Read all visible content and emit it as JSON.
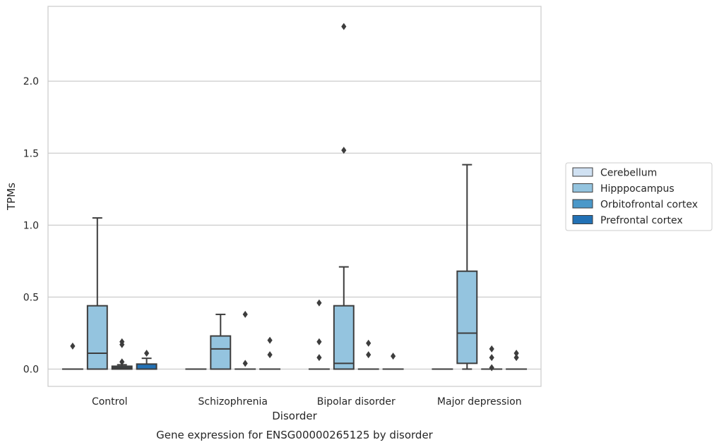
{
  "chart_data": {
    "type": "box",
    "caption": "Gene expression for ENSG00000265125 by disorder",
    "xlabel": "Disorder",
    "ylabel": "TPMs",
    "ylim": [
      -0.12,
      2.52
    ],
    "yticks": [
      0.0,
      0.5,
      1.0,
      1.5,
      2.0
    ],
    "ytick_labels": [
      "0.0",
      "0.5",
      "1.0",
      "1.5",
      "2.0"
    ],
    "grid": true,
    "legend_position": "right",
    "categories": [
      "Control",
      "Schizophrenia",
      "Bipolar disorder",
      "Major depression"
    ],
    "series": [
      {
        "name": "Cerebellum",
        "color": "#d0e1f2",
        "boxes": [
          {
            "q1": 0,
            "median": 0,
            "q3": 0,
            "whisker_low": 0,
            "whisker_high": 0,
            "outliers": [
              0.16
            ]
          },
          {
            "q1": 0,
            "median": 0,
            "q3": 0,
            "whisker_low": 0,
            "whisker_high": 0,
            "outliers": []
          },
          {
            "q1": 0,
            "median": 0,
            "q3": 0,
            "whisker_low": 0,
            "whisker_high": 0,
            "outliers": [
              0.46,
              0.19,
              0.08
            ]
          },
          {
            "q1": 0,
            "median": 0,
            "q3": 0,
            "whisker_low": 0,
            "whisker_high": 0,
            "outliers": []
          }
        ]
      },
      {
        "name": "Hipppocampus",
        "color": "#94c4df",
        "boxes": [
          {
            "q1": 0,
            "median": 0.11,
            "q3": 0.44,
            "whisker_low": 0,
            "whisker_high": 1.05,
            "outliers": []
          },
          {
            "q1": 0,
            "median": 0.14,
            "q3": 0.23,
            "whisker_low": 0,
            "whisker_high": 0.38,
            "outliers": []
          },
          {
            "q1": 0,
            "median": 0.04,
            "q3": 0.44,
            "whisker_low": 0,
            "whisker_high": 0.71,
            "outliers": [
              2.38,
              1.52
            ]
          },
          {
            "q1": 0.04,
            "median": 0.25,
            "q3": 0.68,
            "whisker_low": 0,
            "whisker_high": 1.42,
            "outliers": []
          }
        ]
      },
      {
        "name": "Orbitofrontal cortex",
        "color": "#4a98c9",
        "boxes": [
          {
            "q1": 0,
            "median": 0.01,
            "q3": 0.02,
            "whisker_low": 0,
            "whisker_high": 0.03,
            "outliers": [
              0.19,
              0.17,
              0.05
            ]
          },
          {
            "q1": 0,
            "median": 0,
            "q3": 0,
            "whisker_low": 0,
            "whisker_high": 0,
            "outliers": [
              0.38,
              0.04
            ]
          },
          {
            "q1": 0,
            "median": 0,
            "q3": 0,
            "whisker_low": 0,
            "whisker_high": 0,
            "outliers": [
              0.18,
              0.1
            ]
          },
          {
            "q1": 0,
            "median": 0,
            "q3": 0,
            "whisker_low": 0,
            "whisker_high": 0,
            "outliers": [
              0.14,
              0.08,
              0.01
            ]
          }
        ]
      },
      {
        "name": "Prefrontal cortex",
        "color": "#2271b5",
        "boxes": [
          {
            "q1": 0,
            "median": 0,
            "q3": 0.035,
            "whisker_low": 0,
            "whisker_high": 0.075,
            "outliers": [
              0.11
            ]
          },
          {
            "q1": 0,
            "median": 0,
            "q3": 0,
            "whisker_low": 0,
            "whisker_high": 0,
            "outliers": [
              0.2,
              0.1
            ]
          },
          {
            "q1": 0,
            "median": 0,
            "q3": 0,
            "whisker_low": 0,
            "whisker_high": 0,
            "outliers": [
              0.09
            ]
          },
          {
            "q1": 0,
            "median": 0,
            "q3": 0,
            "whisker_low": 0,
            "whisker_high": 0,
            "outliers": [
              0.11,
              0.08
            ]
          }
        ]
      }
    ]
  }
}
